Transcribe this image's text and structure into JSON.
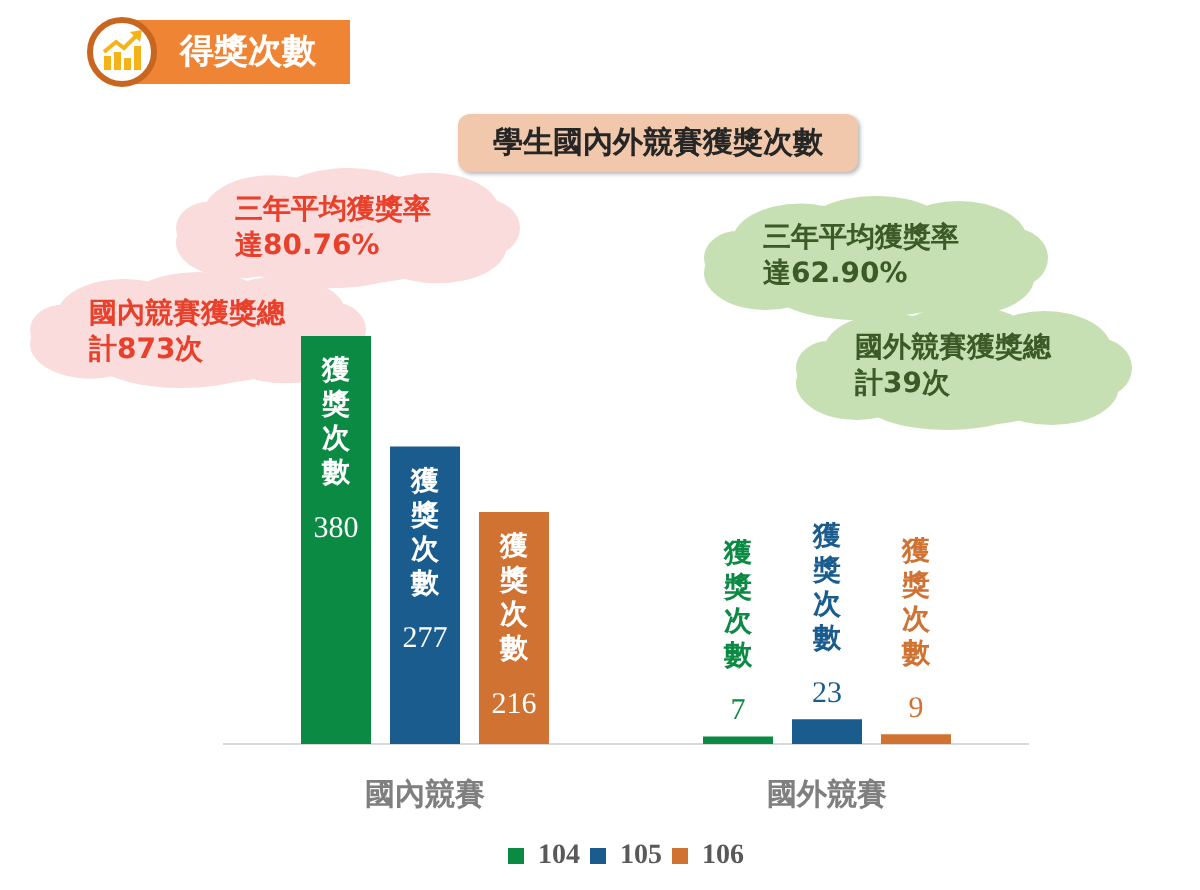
{
  "chart_data": {
    "type": "bar",
    "title": "得獎次數",
    "subtitle": "學生國內外競賽獲獎次數",
    "categories": [
      "國內競賽",
      "國外競賽"
    ],
    "series": [
      {
        "name": "104",
        "color": "#0a8a43",
        "values": [
          380,
          7
        ],
        "value_labels": [
          "獲獎次數 380",
          "獲獎次數 7"
        ]
      },
      {
        "name": "105",
        "color": "#195c8d",
        "values": [
          277,
          23
        ],
        "value_labels": [
          "獲獎次數 277",
          "獲獎次數 23"
        ]
      },
      {
        "name": "106",
        "color": "#d07232",
        "values": [
          216,
          9
        ],
        "value_labels": [
          "獲獎次數 216",
          "獲獎次數 9"
        ]
      }
    ],
    "annotations": [
      "三年平均獲獎率達80.76%",
      "國內競賽獲獎總計873次",
      "三年平均獲獎率達62.90%",
      "國外競賽獲獎總計39次"
    ],
    "legend": "bottom",
    "grid": false
  }
}
